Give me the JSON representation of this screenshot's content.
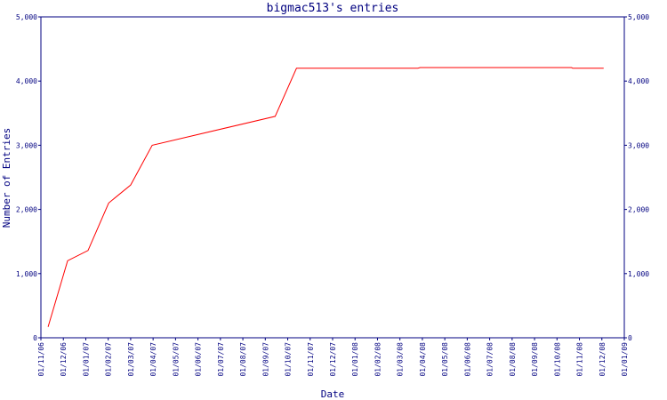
{
  "chart_data": {
    "type": "line",
    "title": "bigmac513's entries",
    "xlabel": "Date",
    "ylabel": "Number of Entries",
    "x": [
      0.32,
      1.19,
      2.1,
      3.02,
      4.0,
      4.96,
      10.44,
      11.39,
      16.8,
      16.9,
      23.65,
      23.7,
      25.08
    ],
    "values": [
      170,
      1200,
      1360,
      2100,
      2380,
      3000,
      3450,
      4200,
      4200,
      4210,
      4210,
      4200,
      4200
    ],
    "color": "#ff0000",
    "axis_color": "#000080",
    "xlim": [
      0,
      26
    ],
    "xticks": [
      {
        "value": 0,
        "label": "01/11/06"
      },
      {
        "value": 1,
        "label": "01/12/06"
      },
      {
        "value": 2,
        "label": "01/01/07"
      },
      {
        "value": 3,
        "label": "01/02/07"
      },
      {
        "value": 4,
        "label": "01/03/07"
      },
      {
        "value": 5,
        "label": "01/04/07"
      },
      {
        "value": 6,
        "label": "01/05/07"
      },
      {
        "value": 7,
        "label": "01/06/07"
      },
      {
        "value": 8,
        "label": "01/07/07"
      },
      {
        "value": 9,
        "label": "01/08/07"
      },
      {
        "value": 10,
        "label": "01/09/07"
      },
      {
        "value": 11,
        "label": "01/10/07"
      },
      {
        "value": 12,
        "label": "01/11/07"
      },
      {
        "value": 13,
        "label": "01/12/07"
      },
      {
        "value": 14,
        "label": "01/01/08"
      },
      {
        "value": 15,
        "label": "01/02/08"
      },
      {
        "value": 16,
        "label": "01/03/08"
      },
      {
        "value": 17,
        "label": "01/04/08"
      },
      {
        "value": 18,
        "label": "01/05/08"
      },
      {
        "value": 19,
        "label": "01/06/08"
      },
      {
        "value": 20,
        "label": "01/07/08"
      },
      {
        "value": 21,
        "label": "01/08/08"
      },
      {
        "value": 22,
        "label": "01/09/08"
      },
      {
        "value": 23,
        "label": "01/10/08"
      },
      {
        "value": 24,
        "label": "01/11/08"
      },
      {
        "value": 25,
        "label": "01/12/08"
      },
      {
        "value": 26,
        "label": "01/01/09"
      }
    ],
    "ylim": [
      0,
      5000
    ],
    "yticks": [
      0,
      {
        "value": 1000,
        "label": "1,000"
      },
      {
        "value": 2000,
        "label": "2,000"
      },
      {
        "value": 3000,
        "label": "3,000"
      },
      {
        "value": 4000,
        "label": "4,000"
      },
      {
        "value": 5000,
        "label": "5,000"
      }
    ]
  }
}
